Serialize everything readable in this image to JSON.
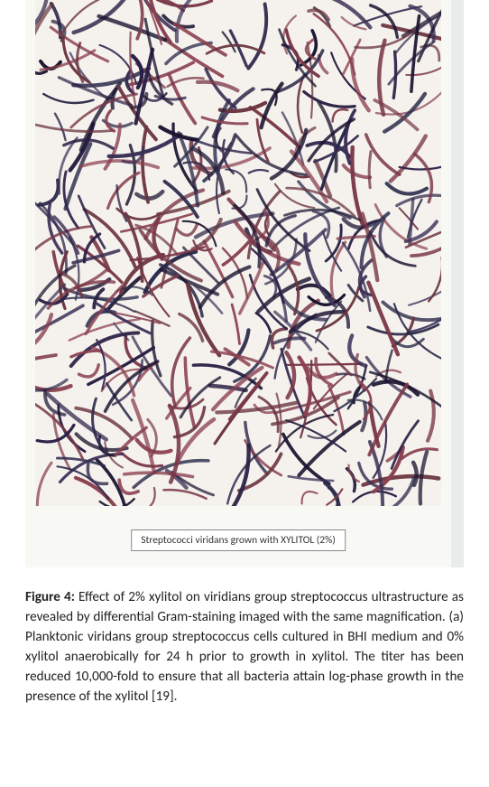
{
  "figure": {
    "micrograph": {
      "label_text": "Streptococci viridans grown with XYLITOL (2%)",
      "background_color": "#f5f2ed",
      "image_area_width": 450,
      "image_area_height": 560,
      "filament_colors": [
        "#1a1430",
        "#2b2045",
        "#8a4050",
        "#6b3540",
        "#3a3055",
        "#7a3848",
        "#2a2a4a"
      ],
      "filament_width_range": [
        2,
        4.5
      ],
      "filament_length_range": [
        20,
        90
      ],
      "filament_density": 420
    },
    "caption": {
      "label": "Figure 4:",
      "text": "Effect of 2% xylitol on viridians group streptococcus ultrastructure as revealed by differential Gram-staining imaged with the same magnification. (a) Planktonic viridans group streptococcus cells cultured in BHI medium and 0% xylitol anaerobically for 24 h prior to growth in xylitol. The titer has been reduced 10,000-fold to ensure that all bacteria attain log-phase growth in the presence of the xylitol [19].",
      "font_size_pt": 11.5,
      "font_family": "Calibri",
      "text_align": "justify",
      "label_weight": "bold"
    },
    "frame": {
      "right_border_color": "#e8ecea",
      "right_border_width": 14,
      "outer_background": "#f8f8f5"
    }
  }
}
